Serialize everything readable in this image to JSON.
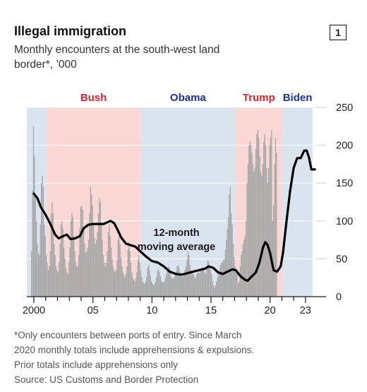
{
  "header": {
    "title": "Illegal immigration",
    "subtitle": "Monthly encounters at the south-west land border*, ’000",
    "badge": "1"
  },
  "footnote": {
    "line1": "*Only encounters between ports of entry. Since March",
    "line2": "2020 monthly totals include apprehensions & expulsions.",
    "line3": "Prior totals include apprehensions only",
    "source": "Source: US Customs and Border Protection"
  },
  "colors": {
    "bush_shade": "#f9d7d5",
    "obama_shade": "#d9e4ef",
    "trump_shade": "#f9d7d5",
    "biden_shade": "#d9e4ef",
    "bars": "#a8a8a8",
    "moving_average": "#000000",
    "republican_label": "#e0242b",
    "democrat_label": "#1f2f8c"
  },
  "chart_data": {
    "type": "bar",
    "title": "Illegal immigration",
    "subtitle": "Monthly encounters at the south-west land border*, ’000",
    "x_ticks": [
      "2000",
      "05",
      "10",
      "15",
      "20",
      "23"
    ],
    "x_tick_years": [
      2000,
      2005,
      2010,
      2015,
      2020,
      2023
    ],
    "ylim": [
      0,
      250
    ],
    "y_ticks": [
      0,
      50,
      100,
      150,
      200,
      250
    ],
    "y_axis_side": "right",
    "grid": true,
    "periods": [
      {
        "label": "Bush",
        "start": 2001.05,
        "end": 2009.05,
        "party": "republican"
      },
      {
        "label": "Obama",
        "start": 2009.05,
        "end": 2017.05,
        "party": "democrat"
      },
      {
        "label": "Trump",
        "start": 2017.05,
        "end": 2021.05,
        "party": "republican"
      },
      {
        "label": "Biden",
        "start": 2021.05,
        "end": 2023.6,
        "party": "democrat"
      }
    ],
    "series": [
      {
        "name": "Monthly encounters",
        "kind": "bars",
        "start": 1999.8,
        "step": 0.08333,
        "values": [
          60,
          140,
          225,
          185,
          130,
          100,
          70,
          58,
          55,
          95,
          150,
          160,
          145,
          95,
          80,
          55,
          45,
          35,
          40,
          60,
          110,
          125,
          110,
          70,
          55,
          40,
          35,
          32,
          45,
          70,
          95,
          100,
          90,
          65,
          50,
          38,
          32,
          30,
          45,
          65,
          100,
          110,
          105,
          80,
          60,
          45,
          40,
          40,
          55,
          90,
          118,
          120,
          115,
          90,
          70,
          58,
          60,
          65,
          75,
          110,
          145,
          135,
          120,
          95,
          78,
          70,
          75,
          85,
          110,
          130,
          125,
          95,
          75,
          55,
          45,
          40,
          45,
          60,
          85,
          95,
          80,
          65,
          50,
          40,
          35,
          32,
          36,
          48,
          75,
          85,
          70,
          52,
          40,
          32,
          28,
          25,
          30,
          40,
          62,
          72,
          60,
          45,
          32,
          25,
          22,
          20,
          24,
          32,
          48,
          55,
          45,
          35,
          26,
          20,
          18,
          17,
          20,
          26,
          38,
          42,
          35,
          27,
          20,
          17,
          16,
          16,
          20,
          26,
          34,
          37,
          33,
          27,
          21,
          19,
          19,
          20,
          24,
          30,
          36,
          40,
          38,
          32,
          26,
          24,
          24,
          26,
          30,
          34,
          40,
          42,
          38,
          33,
          28,
          26,
          27,
          30,
          35,
          40,
          48,
          60,
          55,
          42,
          35,
          33,
          30,
          28,
          24,
          26,
          30,
          32,
          32,
          31,
          34,
          38,
          38,
          35,
          32,
          30,
          38,
          48,
          46,
          40,
          35,
          30,
          20,
          15,
          12,
          15,
          20,
          25,
          30,
          35,
          42,
          45,
          45,
          48,
          50,
          62,
          75,
          90,
          105,
          135,
          145,
          110,
          95,
          70,
          52,
          40,
          35,
          30,
          18,
          20,
          40,
          55,
          60,
          70,
          75,
          80,
          100,
          150,
          175,
          200,
          205,
          200,
          190,
          175,
          165,
          170,
          195,
          215,
          220,
          210,
          185,
          165,
          160,
          175,
          205,
          215,
          200,
          170,
          150,
          170,
          200,
          210,
          220,
          100,
          120,
          175,
          210,
          190
        ]
      },
      {
        "name": "12-month moving average",
        "kind": "line",
        "points": [
          [
            2000.0,
            136
          ],
          [
            2000.3,
            130
          ],
          [
            2000.6,
            118
          ],
          [
            2001.0,
            108
          ],
          [
            2001.4,
            96
          ],
          [
            2001.8,
            82
          ],
          [
            2002.1,
            77
          ],
          [
            2002.5,
            80
          ],
          [
            2002.8,
            82
          ],
          [
            2003.1,
            76
          ],
          [
            2003.5,
            77
          ],
          [
            2003.9,
            80
          ],
          [
            2004.2,
            90
          ],
          [
            2004.6,
            95
          ],
          [
            2005.0,
            96
          ],
          [
            2005.5,
            96
          ],
          [
            2005.9,
            96
          ],
          [
            2006.2,
            98
          ],
          [
            2006.5,
            100
          ],
          [
            2006.8,
            97
          ],
          [
            2007.1,
            88
          ],
          [
            2007.4,
            78
          ],
          [
            2007.8,
            70
          ],
          [
            2008.2,
            68
          ],
          [
            2008.6,
            66
          ],
          [
            2009.0,
            60
          ],
          [
            2009.5,
            53
          ],
          [
            2010.0,
            47
          ],
          [
            2010.5,
            45
          ],
          [
            2011.0,
            40
          ],
          [
            2011.5,
            33
          ],
          [
            2012.0,
            30
          ],
          [
            2012.5,
            29
          ],
          [
            2013.0,
            31
          ],
          [
            2013.5,
            33
          ],
          [
            2014.0,
            35
          ],
          [
            2014.5,
            37
          ],
          [
            2014.8,
            40
          ],
          [
            2015.2,
            38
          ],
          [
            2015.6,
            32
          ],
          [
            2016.0,
            30
          ],
          [
            2016.4,
            33
          ],
          [
            2016.8,
            36
          ],
          [
            2017.1,
            35
          ],
          [
            2017.5,
            27
          ],
          [
            2017.9,
            22
          ],
          [
            2018.1,
            21
          ],
          [
            2018.4,
            26
          ],
          [
            2018.8,
            32
          ],
          [
            2019.1,
            45
          ],
          [
            2019.4,
            65
          ],
          [
            2019.6,
            72
          ],
          [
            2019.8,
            68
          ],
          [
            2020.0,
            58
          ],
          [
            2020.3,
            35
          ],
          [
            2020.6,
            33
          ],
          [
            2020.9,
            40
          ],
          [
            2021.1,
            58
          ],
          [
            2021.4,
            100
          ],
          [
            2021.7,
            140
          ],
          [
            2022.0,
            170
          ],
          [
            2022.3,
            183
          ],
          [
            2022.6,
            183
          ],
          [
            2022.9,
            193
          ],
          [
            2023.1,
            193
          ],
          [
            2023.3,
            184
          ],
          [
            2023.5,
            168
          ],
          [
            2023.8,
            168
          ]
        ]
      }
    ],
    "annotation": "12-month\nmoving average",
    "annotation_lines": [
      "12-month",
      "moving average"
    ]
  }
}
